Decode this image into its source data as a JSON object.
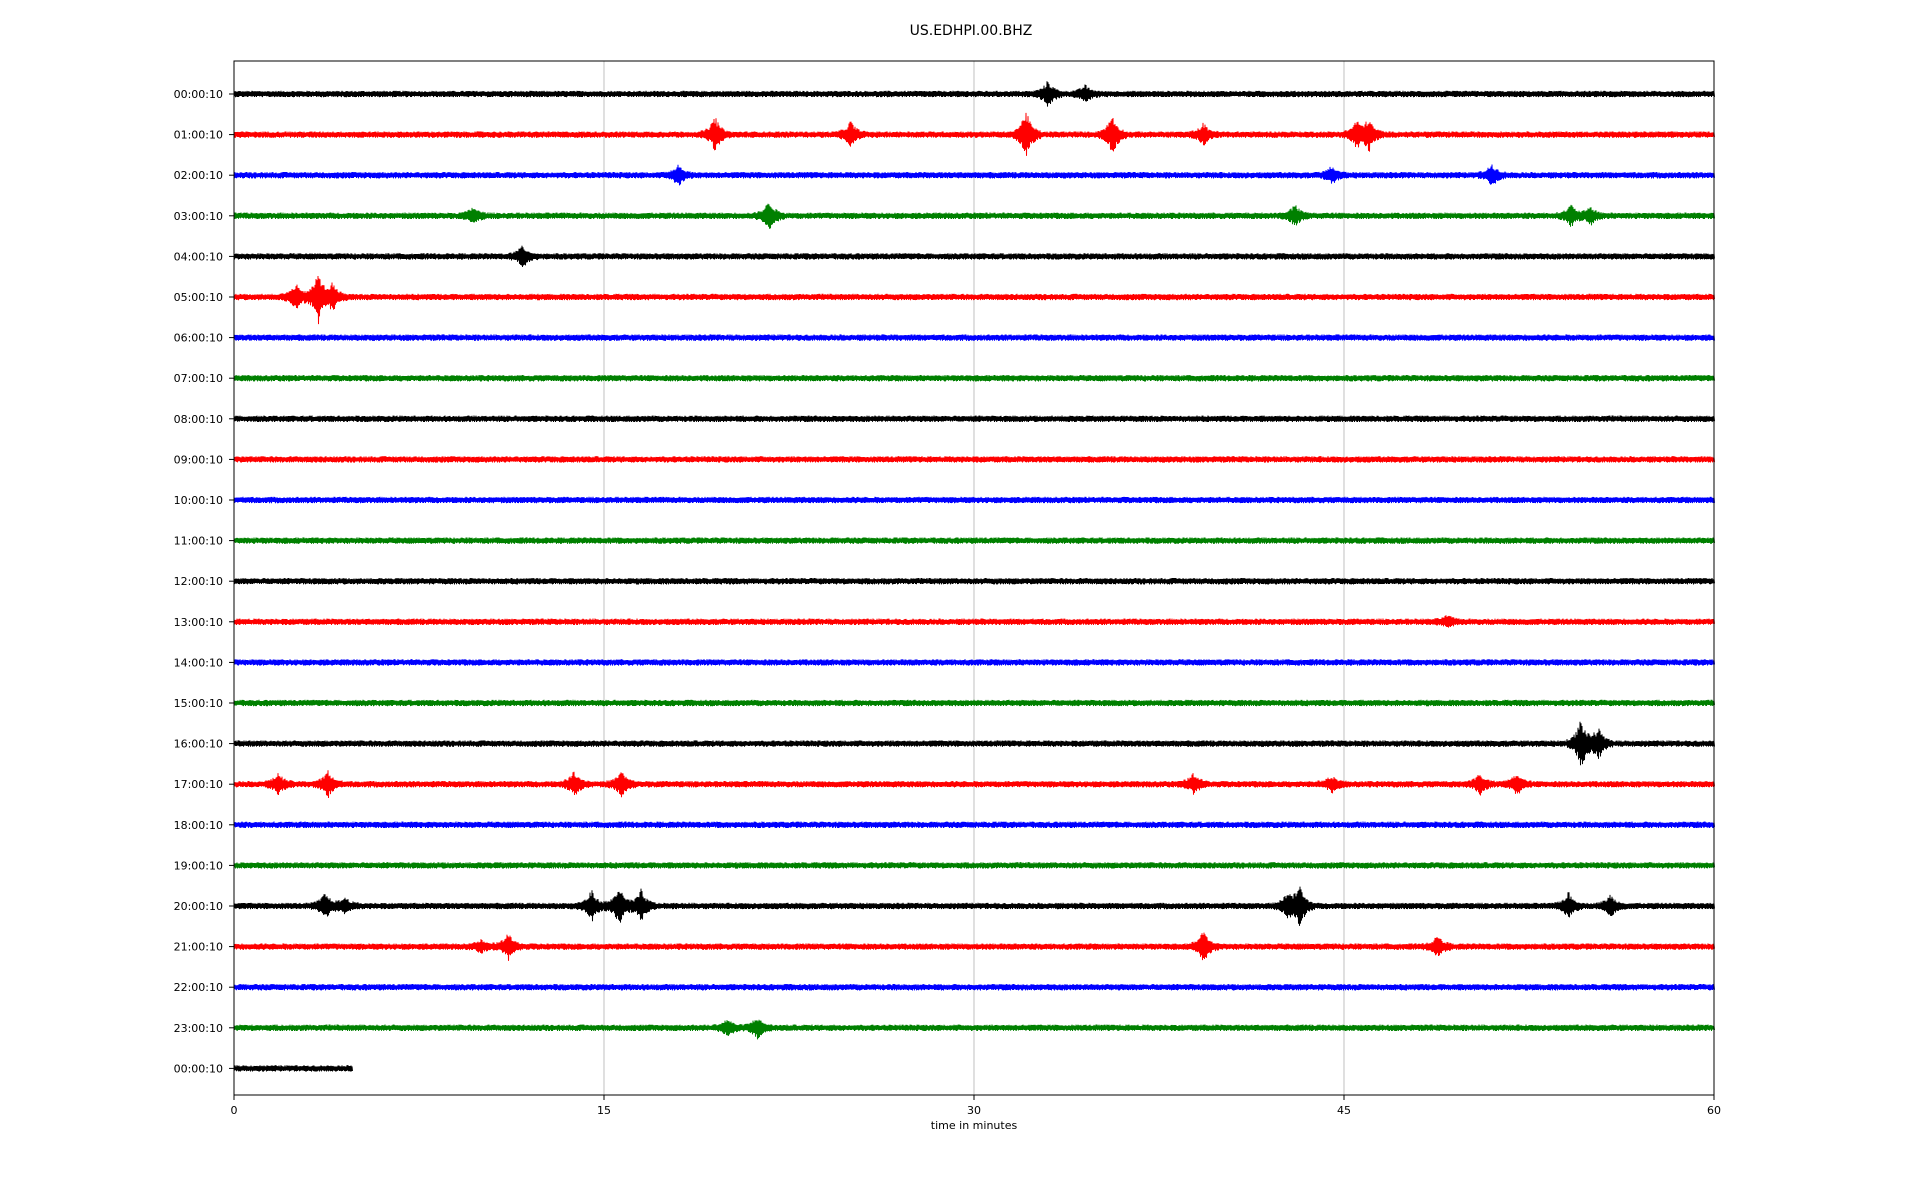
{
  "chart_data": {
    "type": "line",
    "title": "US.EDHPI.00.BHZ",
    "xlabel": "time in minutes",
    "ylabel": "",
    "xlim": [
      0,
      60
    ],
    "x_ticks": [
      "0",
      "15",
      "30",
      "45",
      "60"
    ],
    "x_tick_values": [
      0,
      15,
      30,
      45,
      60
    ],
    "grid": "vertical lines at 15, 30, 45",
    "color_cycle": [
      "#000000",
      "#ff0000",
      "#0000ff",
      "#008000"
    ],
    "series": [
      {
        "label": "00:00:10",
        "end_minute": 60,
        "events": [
          {
            "t": 33.0,
            "amp": 0.5
          },
          {
            "t": 34.5,
            "amp": 0.3
          }
        ]
      },
      {
        "label": "01:00:10",
        "end_minute": 60,
        "events": [
          {
            "t": 19.5,
            "amp": 0.7
          },
          {
            "t": 25.0,
            "amp": 0.5
          },
          {
            "t": 32.1,
            "amp": 1.0
          },
          {
            "t": 35.6,
            "amp": 0.8
          },
          {
            "t": 39.3,
            "amp": 0.4
          },
          {
            "t": 45.5,
            "amp": 0.5
          },
          {
            "t": 46.0,
            "amp": 0.6
          }
        ]
      },
      {
        "label": "02:00:10",
        "end_minute": 60,
        "events": [
          {
            "t": 18.0,
            "amp": 0.4
          },
          {
            "t": 44.5,
            "amp": 0.3
          },
          {
            "t": 51.0,
            "amp": 0.4
          }
        ]
      },
      {
        "label": "03:00:10",
        "end_minute": 60,
        "events": [
          {
            "t": 9.7,
            "amp": 0.3
          },
          {
            "t": 21.7,
            "amp": 0.6
          },
          {
            "t": 43.0,
            "amp": 0.4
          },
          {
            "t": 54.2,
            "amp": 0.4
          },
          {
            "t": 55.0,
            "amp": 0.3
          }
        ]
      },
      {
        "label": "04:00:10",
        "end_minute": 60,
        "events": [
          {
            "t": 11.7,
            "amp": 0.4
          }
        ]
      },
      {
        "label": "05:00:10",
        "end_minute": 60,
        "events": [
          {
            "t": 2.5,
            "amp": 0.5
          },
          {
            "t": 3.4,
            "amp": 1.0
          },
          {
            "t": 4.0,
            "amp": 0.5
          }
        ]
      },
      {
        "label": "06:00:10",
        "end_minute": 60,
        "events": []
      },
      {
        "label": "07:00:10",
        "end_minute": 60,
        "events": []
      },
      {
        "label": "08:00:10",
        "end_minute": 60,
        "events": []
      },
      {
        "label": "09:00:10",
        "end_minute": 60,
        "events": []
      },
      {
        "label": "10:00:10",
        "end_minute": 60,
        "events": []
      },
      {
        "label": "11:00:10",
        "end_minute": 60,
        "events": []
      },
      {
        "label": "12:00:10",
        "end_minute": 60,
        "events": []
      },
      {
        "label": "13:00:10",
        "end_minute": 60,
        "events": [
          {
            "t": 49.2,
            "amp": 0.2
          }
        ]
      },
      {
        "label": "14:00:10",
        "end_minute": 60,
        "events": []
      },
      {
        "label": "15:00:10",
        "end_minute": 60,
        "events": []
      },
      {
        "label": "16:00:10",
        "end_minute": 60,
        "events": [
          {
            "t": 54.6,
            "amp": 1.0
          },
          {
            "t": 55.3,
            "amp": 0.6
          }
        ]
      },
      {
        "label": "17:00:10",
        "end_minute": 60,
        "events": [
          {
            "t": 1.8,
            "amp": 0.4
          },
          {
            "t": 3.8,
            "amp": 0.5
          },
          {
            "t": 13.8,
            "amp": 0.5
          },
          {
            "t": 15.7,
            "amp": 0.5
          },
          {
            "t": 38.9,
            "amp": 0.4
          },
          {
            "t": 44.5,
            "amp": 0.3
          },
          {
            "t": 50.5,
            "amp": 0.4
          },
          {
            "t": 52.0,
            "amp": 0.4
          }
        ]
      },
      {
        "label": "18:00:10",
        "end_minute": 60,
        "events": []
      },
      {
        "label": "19:00:10",
        "end_minute": 60,
        "events": []
      },
      {
        "label": "20:00:10",
        "end_minute": 60,
        "events": [
          {
            "t": 3.7,
            "amp": 0.5
          },
          {
            "t": 4.5,
            "amp": 0.3
          },
          {
            "t": 14.5,
            "amp": 0.6
          },
          {
            "t": 15.6,
            "amp": 0.8
          },
          {
            "t": 16.5,
            "amp": 0.6
          },
          {
            "t": 42.7,
            "amp": 0.5
          },
          {
            "t": 43.2,
            "amp": 0.8
          },
          {
            "t": 54.1,
            "amp": 0.5
          },
          {
            "t": 55.8,
            "amp": 0.4
          }
        ]
      },
      {
        "label": "21:00:10",
        "end_minute": 60,
        "events": [
          {
            "t": 10.0,
            "amp": 0.2
          },
          {
            "t": 11.1,
            "amp": 0.5
          },
          {
            "t": 39.3,
            "amp": 0.6
          },
          {
            "t": 48.8,
            "amp": 0.4
          }
        ]
      },
      {
        "label": "22:00:10",
        "end_minute": 60,
        "events": []
      },
      {
        "label": "23:00:10",
        "end_minute": 60,
        "events": [
          {
            "t": 20.0,
            "amp": 0.3
          },
          {
            "t": 21.2,
            "amp": 0.4
          }
        ]
      },
      {
        "label": "00:00:10",
        "end_minute": 4.8,
        "events": []
      }
    ]
  }
}
